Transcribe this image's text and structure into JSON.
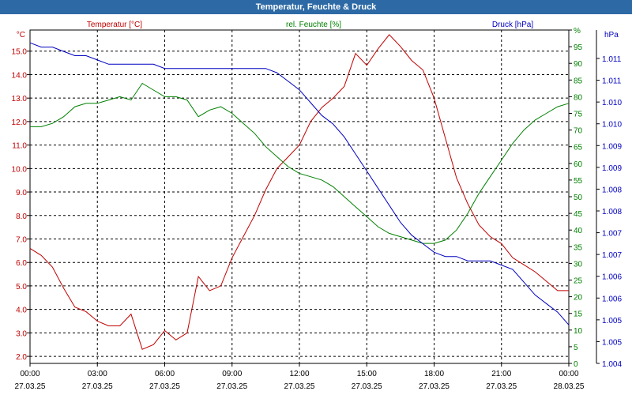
{
  "window": {
    "title": "Temperatur, Feuchte & Druck"
  },
  "chart_data": {
    "type": "line",
    "title": "Temperatur, Feuchte & Druck",
    "x_ticks": [
      {
        "time": "00:00",
        "date": "27.03.25"
      },
      {
        "time": "03:00",
        "date": "27.03.25"
      },
      {
        "time": "06:00",
        "date": "27.03.25"
      },
      {
        "time": "09:00",
        "date": "27.03.25"
      },
      {
        "time": "12:00",
        "date": "27.03.25"
      },
      {
        "time": "15:00",
        "date": "27.03.25"
      },
      {
        "time": "18:00",
        "date": "27.03.25"
      },
      {
        "time": "21:00",
        "date": "27.03.25"
      },
      {
        "time": "00:00",
        "date": "28.03.25"
      }
    ],
    "xlim_hours": [
      0,
      24
    ],
    "axes": {
      "temperature": {
        "label": "Temperatur [°C]",
        "unit": "°C",
        "ylim": [
          1.7,
          15.9
        ],
        "ticks": [
          "2.0",
          "3.0",
          "4.0",
          "5.0",
          "6.0",
          "7.0",
          "8.0",
          "9.0",
          "10.0",
          "11.0",
          "12.0",
          "13.0",
          "14.0",
          "15.0"
        ],
        "color": "#c00000"
      },
      "humidity": {
        "label": "rel. Feuchte [%]",
        "unit": "%",
        "ylim": [
          0,
          100
        ],
        "ticks": [
          "0",
          "5",
          "10",
          "15",
          "20",
          "25",
          "30",
          "35",
          "40",
          "45",
          "50",
          "55",
          "60",
          "65",
          "70",
          "75",
          "80",
          "85",
          "90",
          "95",
          "%"
        ],
        "color": "#008000"
      },
      "pressure": {
        "label": "Druck [hPa]",
        "unit": "hPa",
        "ticks": [
          "1.004",
          "1.005",
          "1.005",
          "1.006",
          "1.006",
          "1.007",
          "1.007",
          "1.008",
          "1.008",
          "1.009",
          "1.009",
          "1.010",
          "1.010",
          "1.011",
          "1.011"
        ],
        "color": "#0000c0"
      }
    },
    "grid": true,
    "series": [
      {
        "name": "Temperatur [°C]",
        "axis": "temperature",
        "color": "#c00000",
        "x": [
          0,
          0.5,
          1,
          1.5,
          2,
          2.5,
          3,
          3.5,
          4,
          4.5,
          5,
          5.5,
          6,
          6.5,
          7,
          7.5,
          8,
          8.5,
          9,
          9.5,
          10,
          10.5,
          11,
          11.5,
          12,
          12.5,
          13,
          13.5,
          14,
          14.5,
          15,
          15.5,
          16,
          16.5,
          17,
          17.5,
          18,
          18.5,
          19,
          19.5,
          20,
          20.5,
          21,
          21.5,
          22,
          22.5,
          23,
          23.5,
          24
        ],
        "y": [
          6.6,
          6.3,
          5.8,
          4.9,
          4.1,
          3.9,
          3.5,
          3.3,
          3.3,
          3.8,
          2.3,
          2.5,
          3.1,
          2.7,
          3.0,
          5.4,
          4.8,
          5.0,
          6.2,
          7.1,
          8.0,
          9.1,
          10.0,
          10.5,
          11.0,
          12.0,
          12.6,
          13.0,
          13.5,
          14.9,
          14.4,
          15.1,
          15.7,
          15.2,
          14.6,
          14.2,
          13.0,
          11.3,
          9.6,
          8.5,
          7.6,
          7.1,
          6.8,
          6.2,
          5.9,
          5.6,
          5.2,
          4.8,
          4.8
        ]
      },
      {
        "name": "rel. Feuchte [%]",
        "axis": "humidity",
        "color": "#008000",
        "x": [
          0,
          0.5,
          1,
          1.5,
          2,
          2.5,
          3,
          3.5,
          4,
          4.5,
          5,
          5.5,
          6,
          6.5,
          7,
          7.5,
          8,
          8.5,
          9,
          9.5,
          10,
          10.5,
          11,
          11.5,
          12,
          12.5,
          13,
          13.5,
          14,
          14.5,
          15,
          15.5,
          16,
          16.5,
          17,
          17.5,
          18,
          18.5,
          19,
          19.5,
          20,
          20.5,
          21,
          21.5,
          22,
          22.5,
          23,
          23.5,
          24
        ],
        "y": [
          71,
          71,
          72,
          74,
          77,
          78,
          78,
          79,
          80,
          79,
          84,
          82,
          80,
          80,
          79,
          74,
          76,
          77,
          75,
          72,
          69,
          65,
          62,
          59,
          57,
          56,
          55,
          53,
          50,
          47,
          44,
          41,
          39,
          38,
          37,
          36,
          36,
          37,
          40,
          45,
          51,
          56,
          61,
          66,
          70,
          73,
          75,
          77,
          78
        ]
      },
      {
        "name": "Druck [hPa]",
        "axis": "pressure",
        "color": "#0000c0",
        "x": [
          0,
          0.5,
          1,
          1.5,
          2,
          2.5,
          3,
          3.5,
          4,
          4.5,
          5,
          5.5,
          6,
          6.5,
          7,
          7.5,
          8,
          8.5,
          9,
          9.5,
          10,
          10.5,
          11,
          11.5,
          12,
          12.5,
          13,
          13.5,
          14,
          14.5,
          15,
          15.5,
          16,
          16.5,
          17,
          17.5,
          18,
          18.5,
          19,
          19.5,
          20,
          20.5,
          21,
          21.5,
          22,
          22.5,
          23,
          23.5,
          24
        ],
        "y": [
          1.0115,
          1.0114,
          1.0114,
          1.0113,
          1.0112,
          1.0112,
          1.0111,
          1.011,
          1.011,
          1.011,
          1.011,
          1.011,
          1.0109,
          1.0109,
          1.0109,
          1.0109,
          1.0109,
          1.0109,
          1.0109,
          1.0109,
          1.0109,
          1.0109,
          1.0108,
          1.0106,
          1.0104,
          1.0101,
          1.0098,
          1.0096,
          1.0093,
          1.0089,
          1.0085,
          1.0081,
          1.0077,
          1.0073,
          1.007,
          1.0068,
          1.0066,
          1.0065,
          1.0065,
          1.0064,
          1.0064,
          1.0064,
          1.0063,
          1.0062,
          1.0059,
          1.0056,
          1.0054,
          1.0052,
          1.0049
        ]
      }
    ]
  }
}
